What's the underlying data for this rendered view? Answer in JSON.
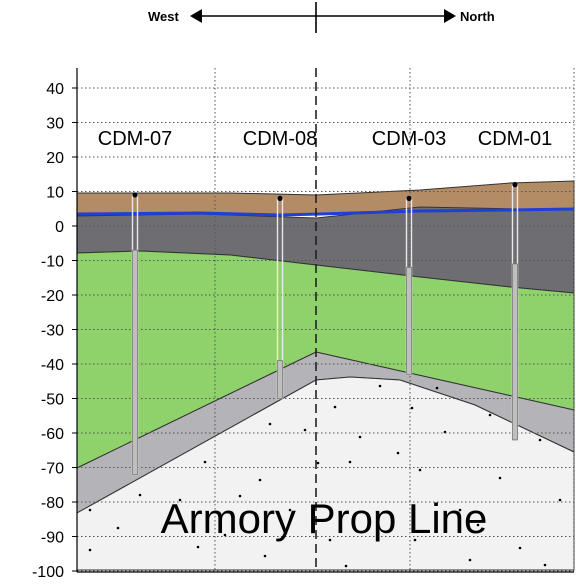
{
  "directions": {
    "left": "West",
    "right": "North"
  },
  "y_ticks": [
    "40",
    "30",
    "20",
    "10",
    "0",
    "-10",
    "-20",
    "-30",
    "-40",
    "-50",
    "-60",
    "-70",
    "-80",
    "-90",
    "-100"
  ],
  "wells": [
    {
      "label": "CDM-07",
      "top_elev": 9,
      "bottom_elev": -72,
      "screen_top": -7,
      "screen_bottom": -72
    },
    {
      "label": "CDM-08",
      "top_elev": 8,
      "bottom_elev": -50,
      "screen_top": -39,
      "screen_bottom": -50
    },
    {
      "label": "CDM-03",
      "top_elev": 8,
      "bottom_elev": -43,
      "screen_top": -12,
      "screen_bottom": -43
    },
    {
      "label": "CDM-01",
      "top_elev": 12,
      "bottom_elev": -62,
      "screen_top": -11,
      "screen_bottom": -62
    }
  ],
  "annotation": "Armory Prop Line",
  "colors": {
    "fill_layer": "#b38c66",
    "gray_layer": "#6e6e72",
    "green_layer": "#8fd16a",
    "transition_layer": "#b4b4b8",
    "bedrock": "#f2f2f2",
    "water_table": "#1f3fd6"
  }
}
